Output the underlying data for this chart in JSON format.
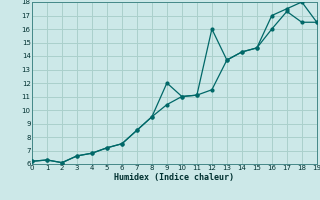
{
  "xlabel": "Humidex (Indice chaleur)",
  "bg_color": "#cce8e8",
  "grid_color": "#aad0cc",
  "line_color": "#006868",
  "line1_x": [
    0,
    1,
    2,
    3,
    4,
    5,
    6,
    7,
    8,
    9,
    10,
    11,
    12,
    13,
    14,
    15,
    16,
    17,
    18,
    19
  ],
  "line1_y": [
    6.2,
    6.3,
    6.1,
    6.6,
    6.8,
    7.2,
    7.5,
    8.5,
    9.5,
    10.4,
    11.0,
    11.1,
    11.5,
    13.7,
    14.3,
    14.6,
    16.0,
    17.3,
    16.5,
    16.5
  ],
  "line2_x": [
    0,
    1,
    2,
    3,
    4,
    5,
    6,
    7,
    8,
    9,
    10,
    11,
    12,
    13,
    14,
    15,
    16,
    17,
    18,
    19
  ],
  "line2_y": [
    6.2,
    6.3,
    6.1,
    6.6,
    6.8,
    7.2,
    7.5,
    8.5,
    9.5,
    12.0,
    11.0,
    11.1,
    16.0,
    13.7,
    14.3,
    14.6,
    17.0,
    17.5,
    18.0,
    16.5
  ],
  "xlim": [
    0,
    19
  ],
  "ylim": [
    6,
    18
  ],
  "yticks": [
    6,
    7,
    8,
    9,
    10,
    11,
    12,
    13,
    14,
    15,
    16,
    17,
    18
  ],
  "xticks": [
    0,
    1,
    2,
    3,
    4,
    5,
    6,
    7,
    8,
    9,
    10,
    11,
    12,
    13,
    14,
    15,
    16,
    17,
    18,
    19
  ]
}
